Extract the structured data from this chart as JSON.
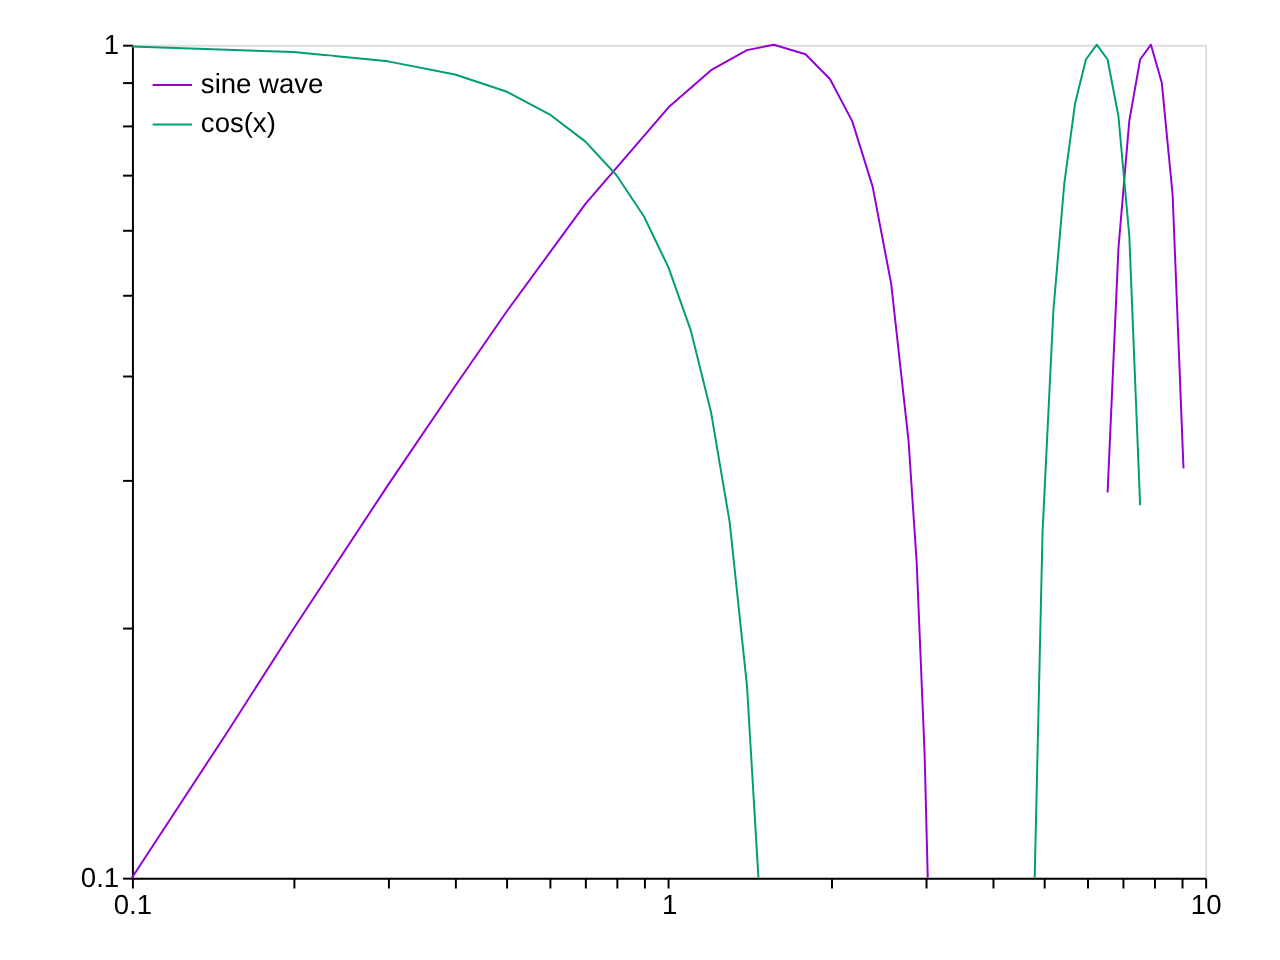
{
  "chart_data": {
    "type": "line",
    "log": "xy",
    "xlim": [
      0.1,
      10
    ],
    "ylim": [
      0.1,
      1
    ],
    "xticks": [
      0.1,
      {
        "value": 0.2,
        "label": null
      },
      {
        "value": 0.3,
        "label": null
      },
      {
        "value": 0.4,
        "label": null
      },
      {
        "value": 0.5,
        "label": null
      },
      {
        "value": 0.6,
        "label": null
      },
      {
        "value": 0.7,
        "label": null
      },
      {
        "value": 0.8,
        "label": null
      },
      {
        "value": 0.9,
        "label": null
      },
      1,
      {
        "value": 2,
        "label": null
      },
      {
        "value": 3,
        "label": null
      },
      {
        "value": 4,
        "label": null
      },
      {
        "value": 5,
        "label": null
      },
      {
        "value": 6,
        "label": null
      },
      {
        "value": 7,
        "label": null
      },
      {
        "value": 8,
        "label": null
      },
      {
        "value": 9,
        "label": null
      },
      10
    ],
    "yticks": [
      0.1,
      {
        "value": 0.2,
        "label": null
      },
      {
        "value": 0.3,
        "label": null
      },
      {
        "value": 0.4,
        "label": null
      },
      {
        "value": 0.5,
        "label": null
      },
      {
        "value": 0.6,
        "label": null
      },
      {
        "value": 0.7,
        "label": null
      },
      {
        "value": 0.8,
        "label": null
      },
      {
        "value": 0.9,
        "label": null
      },
      1
    ],
    "grid": false,
    "legend": "top left",
    "marker": "none",
    "line_style": "solid",
    "series": [
      {
        "name": "sine wave",
        "color": "#9400d3",
        "x": [
          0.1,
          0.15,
          0.2,
          0.3,
          0.4,
          0.5,
          0.7,
          1.0,
          1.2,
          1.4,
          1.5708,
          1.8,
          2.0,
          2.2,
          2.4,
          2.6,
          2.8,
          2.9,
          3.0,
          3.041,
          4.5,
          6.579,
          6.893,
          7.221,
          7.565,
          7.924,
          8.302,
          8.697,
          9.112
        ],
        "values": [
          0.1,
          0.149,
          0.199,
          0.296,
          0.389,
          0.479,
          0.644,
          0.841,
          0.932,
          0.985,
          1.0,
          0.974,
          0.909,
          0.809,
          0.676,
          0.516,
          0.335,
          0.239,
          0.141,
          0.1,
          null,
          0.29,
          0.57,
          0.81,
          0.96,
          1.0,
          0.9,
          0.66,
          0.31
        ]
      },
      {
        "name": "cos(x)",
        "color": "#009e73",
        "x": [
          0.1,
          0.2,
          0.3,
          0.4,
          0.5,
          0.6,
          0.7,
          0.8,
          0.9,
          1.0,
          1.1,
          1.2,
          1.3,
          1.4,
          1.4706,
          3.0,
          4.812,
          4.977,
          5.214,
          5.462,
          5.722,
          5.995,
          6.28,
          6.579,
          6.893,
          7.221,
          7.565
        ],
        "values": [
          0.995,
          0.98,
          0.955,
          0.921,
          0.878,
          0.825,
          0.765,
          0.697,
          0.622,
          0.54,
          0.454,
          0.362,
          0.267,
          0.17,
          0.1,
          null,
          0.1,
          0.26,
          0.48,
          0.68,
          0.85,
          0.96,
          1.0,
          0.96,
          0.82,
          0.59,
          0.28
        ]
      }
    ]
  }
}
